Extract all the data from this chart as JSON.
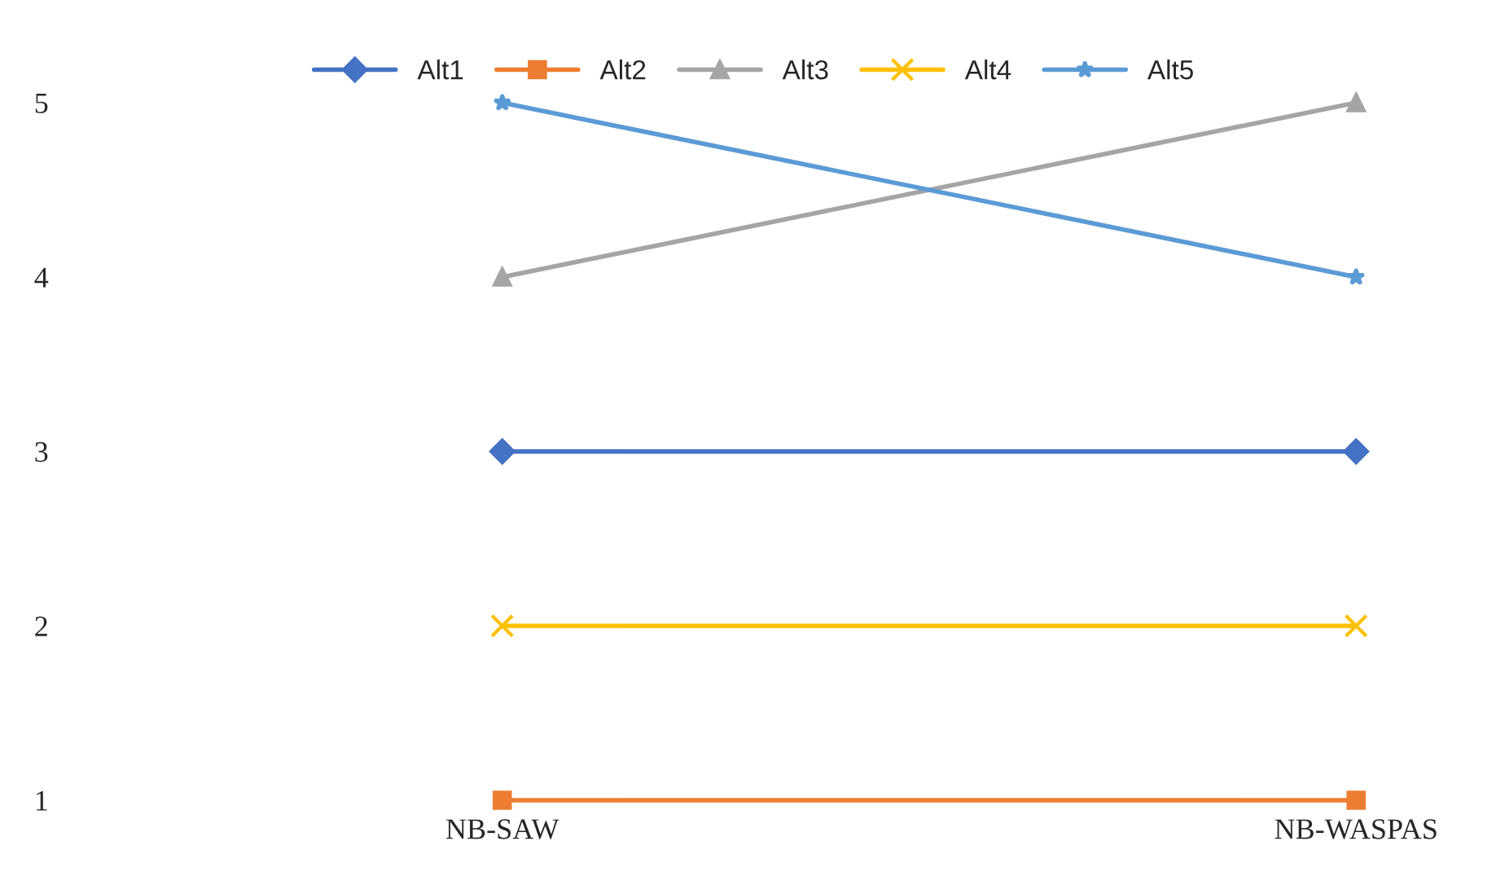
{
  "chart_data": {
    "type": "line",
    "categories": [
      "NB-SAW",
      "NB-WASPAS"
    ],
    "series": [
      {
        "name": "Alt1",
        "color": "#4472c4",
        "marker": "diamond",
        "values": [
          3,
          3
        ]
      },
      {
        "name": "Alt2",
        "color": "#ed7d31",
        "marker": "square",
        "values": [
          1,
          1
        ]
      },
      {
        "name": "Alt3",
        "color": "#a5a5a5",
        "marker": "triangle",
        "values": [
          4,
          5
        ]
      },
      {
        "name": "Alt4",
        "color": "#ffc000",
        "marker": "cross",
        "values": [
          2,
          2
        ]
      },
      {
        "name": "Alt5",
        "color": "#5b9bd5",
        "marker": "star",
        "values": [
          5,
          4
        ]
      }
    ],
    "ylim": [
      1,
      5
    ],
    "yticks": [
      1,
      2,
      3,
      4,
      5
    ],
    "grid": false,
    "legend": "top",
    "line_style": "solid"
  }
}
